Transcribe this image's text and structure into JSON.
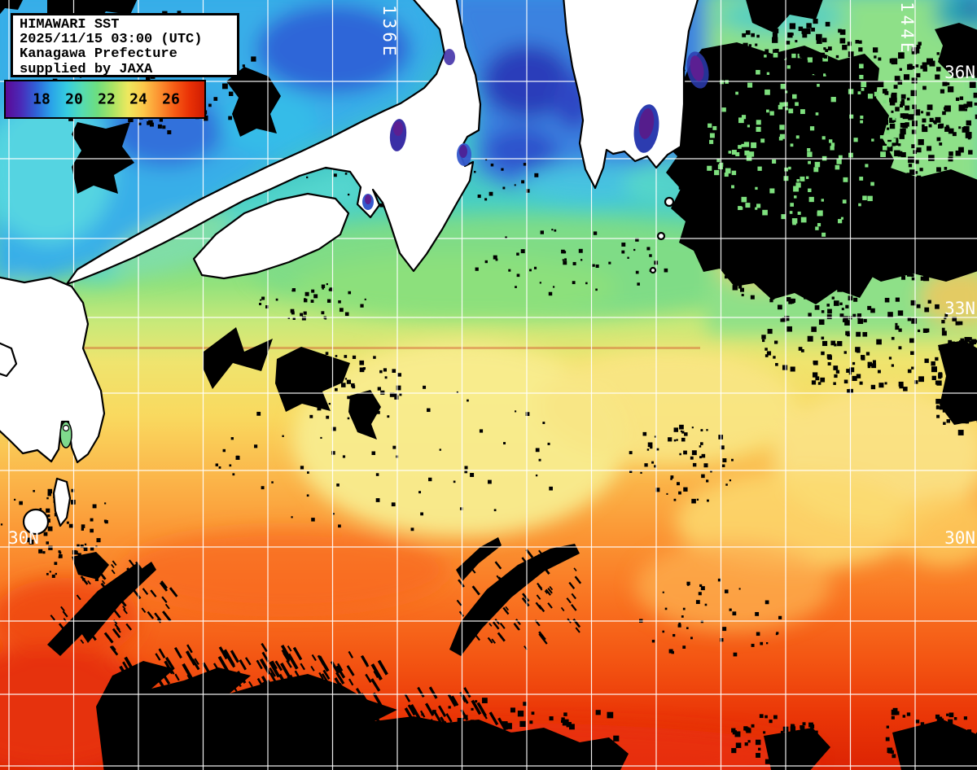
{
  "title_box": {
    "lines": [
      "HIMAWARI SST",
      "2025/11/15 03:00 (UTC)",
      "Kanagawa Prefecture",
      "supplied by JAXA"
    ]
  },
  "colorbar": {
    "ticks": [
      "18",
      "20",
      "22",
      "24",
      "26"
    ],
    "gradient": [
      "#5a0a96",
      "#4a2ab8",
      "#2f62d8",
      "#2aa4e8",
      "#35cce0",
      "#55dcb2",
      "#6ede7e",
      "#aae464",
      "#eee85e",
      "#fcc84a",
      "#fc9432",
      "#f75e16",
      "#ea3206",
      "#cf1c02"
    ]
  },
  "grid_labels": {
    "lon": [
      {
        "text": "136E"
      },
      {
        "text": "144E"
      }
    ],
    "lat_right": [
      {
        "text": "36N"
      },
      {
        "text": "33N"
      },
      {
        "text": "30N"
      }
    ],
    "lat_left": [
      {
        "text": "30N"
      }
    ]
  }
}
